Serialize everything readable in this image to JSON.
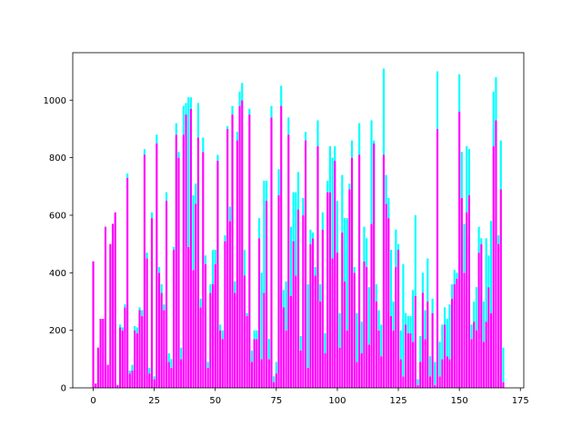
{
  "chart_data": {
    "type": "bar",
    "stacked": true,
    "title": "",
    "xlabel": "",
    "ylabel": "",
    "xlim": [
      -8.4,
      176.4
    ],
    "ylim": [
      0,
      1165
    ],
    "grid": false,
    "legend": "none",
    "x_ticks": [
      0,
      25,
      50,
      75,
      100,
      125,
      150,
      175
    ],
    "y_ticks": [
      0,
      200,
      400,
      600,
      800,
      1000
    ],
    "x": [
      0,
      1,
      2,
      3,
      4,
      5,
      6,
      7,
      8,
      9,
      10,
      11,
      12,
      13,
      14,
      15,
      16,
      17,
      18,
      19,
      20,
      21,
      22,
      23,
      24,
      25,
      26,
      27,
      28,
      29,
      30,
      31,
      32,
      33,
      34,
      35,
      36,
      37,
      38,
      39,
      40,
      41,
      42,
      43,
      44,
      45,
      46,
      47,
      48,
      49,
      50,
      51,
      52,
      53,
      54,
      55,
      56,
      57,
      58,
      59,
      60,
      61,
      62,
      63,
      64,
      65,
      66,
      67,
      68,
      69,
      70,
      71,
      72,
      73,
      74,
      75,
      76,
      77,
      78,
      79,
      80,
      81,
      82,
      83,
      84,
      85,
      86,
      87,
      88,
      89,
      90,
      91,
      92,
      93,
      94,
      95,
      96,
      97,
      98,
      99,
      100,
      101,
      102,
      103,
      104,
      105,
      106,
      107,
      108,
      109,
      110,
      111,
      112,
      113,
      114,
      115,
      116,
      117,
      118,
      119,
      120,
      121,
      122,
      123,
      124,
      125,
      126,
      127,
      128,
      129,
      130,
      131,
      132,
      133,
      134,
      135,
      136,
      137,
      138,
      139,
      140,
      141,
      142,
      143,
      144,
      145,
      146,
      147,
      148,
      149,
      150,
      151,
      152,
      153,
      154,
      155,
      156,
      157,
      158,
      159,
      160,
      161,
      162,
      163,
      164,
      165,
      166,
      167,
      168
    ],
    "series": [
      {
        "color": "#ff00ff",
        "values": [
          440,
          15,
          140,
          240,
          240,
          560,
          80,
          500,
          570,
          610,
          10,
          210,
          200,
          280,
          730,
          50,
          60,
          200,
          190,
          270,
          250,
          810,
          450,
          50,
          590,
          30,
          850,
          400,
          330,
          270,
          650,
          90,
          70,
          480,
          880,
          800,
          100,
          880,
          950,
          490,
          970,
          410,
          640,
          870,
          280,
          820,
          430,
          70,
          330,
          360,
          430,
          790,
          200,
          170,
          510,
          900,
          580,
          950,
          330,
          860,
          980,
          1000,
          390,
          250,
          950,
          90,
          170,
          170,
          520,
          100,
          330,
          650,
          100,
          940,
          20,
          50,
          670,
          980,
          280,
          200,
          880,
          320,
          510,
          390,
          620,
          130,
          600,
          860,
          70,
          500,
          520,
          390,
          840,
          300,
          550,
          120,
          680,
          680,
          450,
          790,
          470,
          140,
          540,
          370,
          200,
          690,
          800,
          400,
          90,
          810,
          120,
          440,
          420,
          150,
          570,
          850,
          300,
          200,
          110,
          810,
          640,
          590,
          250,
          200,
          420,
          480,
          100,
          40,
          220,
          190,
          190,
          160,
          320,
          10,
          90,
          330,
          170,
          300,
          40,
          260,
          10,
          900,
          40,
          100,
          220,
          110,
          100,
          310,
          360,
          380,
          960,
          660,
          400,
          610,
          670,
          170,
          230,
          200,
          470,
          500,
          160,
          230,
          350,
          260,
          840,
          930,
          500,
          690,
          20
        ]
      },
      {
        "color": "#00ffff",
        "values": [
          0,
          0,
          0,
          0,
          0,
          0,
          0,
          0,
          0,
          0,
          0,
          10,
          10,
          10,
          15,
          10,
          20,
          15,
          20,
          10,
          20,
          20,
          20,
          20,
          20,
          10,
          30,
          20,
          30,
          20,
          30,
          30,
          30,
          10,
          40,
          20,
          40,
          100,
          40,
          520,
          40,
          260,
          70,
          120,
          30,
          50,
          30,
          20,
          30,
          120,
          50,
          20,
          20,
          30,
          20,
          10,
          50,
          30,
          40,
          30,
          50,
          60,
          90,
          10,
          20,
          40,
          30,
          30,
          70,
          300,
          390,
          70,
          70,
          40,
          20,
          40,
          90,
          70,
          60,
          170,
          60,
          240,
          170,
          290,
          130,
          50,
          60,
          30,
          290,
          50,
          20,
          30,
          90,
          60,
          60,
          70,
          40,
          160,
          350,
          50,
          180,
          120,
          200,
          220,
          390,
          20,
          60,
          20,
          170,
          110,
          110,
          120,
          100,
          200,
          360,
          10,
          60,
          70,
          110,
          300,
          100,
          70,
          230,
          100,
          130,
          20,
          100,
          390,
          40,
          60,
          60,
          180,
          280,
          20,
          90,
          70,
          100,
          150,
          70,
          50,
          80,
          200,
          120,
          120,
          60,
          130,
          190,
          50,
          50,
          20,
          130,
          160,
          170,
          230,
          160,
          50,
          70,
          150,
          90,
          20,
          140,
          290,
          110,
          320,
          190,
          150,
          30,
          170,
          120
        ]
      }
    ]
  }
}
